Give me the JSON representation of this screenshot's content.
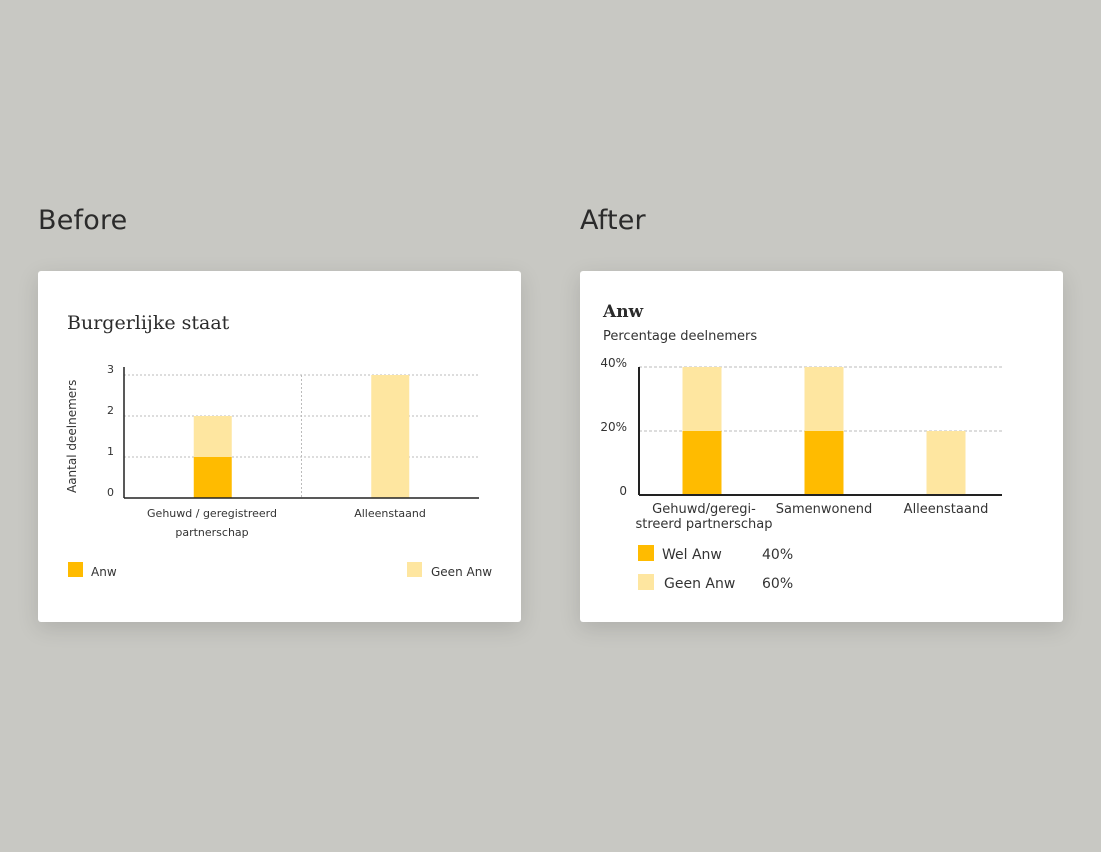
{
  "before": {
    "heading": "Before",
    "chart_title": "Burgerlijke staat",
    "ylabel": "Aantal deelnemers",
    "ticks": [
      "0",
      "1",
      "2",
      "3"
    ],
    "legend": [
      "Anw",
      "Geen Anw"
    ]
  },
  "after": {
    "heading": "After",
    "chart_title": "Anw",
    "subtitle": "Percentage deelnemers",
    "ticks": [
      "0",
      "20%",
      "40%"
    ],
    "legend": [
      {
        "label": "Wel Anw",
        "value": "40%"
      },
      {
        "label": "Geen Anw",
        "value": "60%"
      }
    ]
  },
  "colors": {
    "anw": "#ffbb00",
    "geen_anw": "#fee6a0",
    "axis": "#222222",
    "grid": "#bbbbbb"
  },
  "chart_data": [
    {
      "type": "bar",
      "stacked": true,
      "title": "Burgerlijke staat",
      "xlabel": "",
      "ylabel": "Aantal deelnemers",
      "categories": [
        "Gehuwd / geregistreerd partnerschap",
        "Alleenstaand"
      ],
      "series": [
        {
          "name": "Anw",
          "values": [
            1,
            0
          ]
        },
        {
          "name": "Geen Anw",
          "values": [
            1,
            3
          ]
        }
      ],
      "ylim": [
        0,
        3
      ],
      "yticks": [
        0,
        1,
        2,
        3
      ],
      "grid": true,
      "legend": "bottom"
    },
    {
      "type": "bar",
      "stacked": true,
      "title": "Anw",
      "subtitle": "Percentage deelnemers",
      "xlabel": "",
      "ylabel": "",
      "categories": [
        "Gehuwd/geregistreerd partnerschap",
        "Samenwonend",
        "Alleenstaand"
      ],
      "series": [
        {
          "name": "Wel Anw",
          "values": [
            20,
            20,
            0
          ]
        },
        {
          "name": "Geen Anw",
          "values": [
            20,
            20,
            20
          ]
        }
      ],
      "ylim": [
        0,
        40
      ],
      "yticks": [
        0,
        20,
        40
      ],
      "grid": true,
      "legend": "bottom"
    }
  ]
}
